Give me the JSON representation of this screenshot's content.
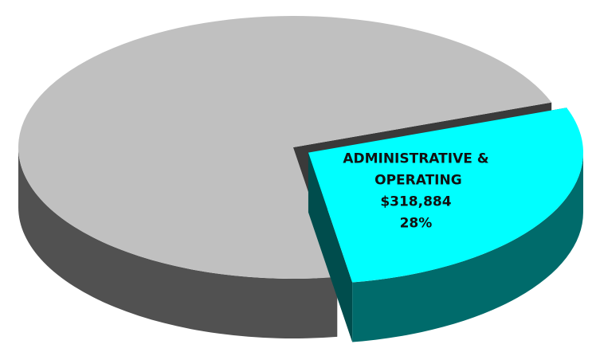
{
  "chart_data": {
    "type": "pie",
    "categories": [
      "ADMINISTRATIVE & OPERATING",
      null
    ],
    "values": [
      28,
      72
    ],
    "value_labels": [
      "28%",
      null
    ],
    "amounts": [
      318884,
      null
    ],
    "amount_labels": [
      "$318,884",
      null
    ],
    "colors": [
      "#00ffff",
      "#c0c0c0"
    ],
    "exploded": [
      true,
      false
    ],
    "three_d": true
  }
}
